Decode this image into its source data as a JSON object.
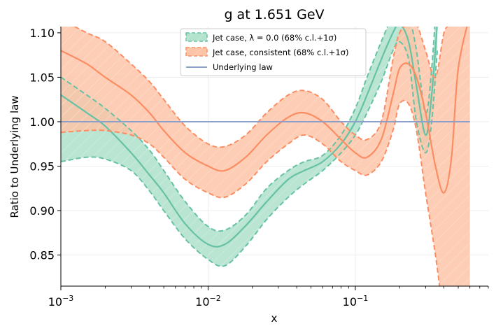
{
  "chart_data": {
    "type": "line",
    "title": "g at 1.651 GeV",
    "xlabel": "x",
    "ylabel": "Ratio to Underlying law",
    "xscale": "log",
    "xlim": [
      0.001,
      0.8
    ],
    "ylim": [
      0.815,
      1.107
    ],
    "yticks": [
      0.85,
      0.9,
      0.95,
      1.0,
      1.05,
      1.1
    ],
    "ytick_labels": [
      "0.85",
      "0.90",
      "0.95",
      "1.00",
      "1.05",
      "1.10"
    ],
    "xticks": [
      0.001,
      0.01,
      0.1
    ],
    "xtick_labels": [
      {
        "base": "10",
        "exp": "−3"
      },
      {
        "base": "10",
        "exp": "−2"
      },
      {
        "base": "10",
        "exp": "−1"
      }
    ],
    "legend_position": "top-center",
    "legend": [
      "Jet case, λ = 0.0 (68% c.l.+1σ)",
      "Jet case, consistent (68% c.l.+1σ)",
      "Underlying law"
    ],
    "colors": {
      "green": "#66c2a5",
      "green_fill": "#b3e2cd",
      "orange": "#fc8d62",
      "orange_fill": "#fdc4a8",
      "underlying": "#8da0cb"
    },
    "series": [
      {
        "name": "Jet case, λ = 0.0 (68% c.l.+1σ)",
        "x": [
          0.001,
          0.0015,
          0.002,
          0.003,
          0.004,
          0.005,
          0.007,
          0.01,
          0.013,
          0.018,
          0.025,
          0.035,
          0.045,
          0.06,
          0.08,
          0.1,
          0.12,
          0.15,
          0.18,
          0.2,
          0.23,
          0.26,
          0.3,
          0.33,
          0.36
        ],
        "central": [
          1.03,
          1.01,
          0.995,
          0.965,
          0.94,
          0.92,
          0.885,
          0.862,
          0.862,
          0.883,
          0.91,
          0.935,
          0.945,
          0.955,
          0.975,
          1.0,
          1.03,
          1.07,
          1.1,
          1.11,
          1.09,
          1.04,
          0.985,
          1.03,
          1.11
        ],
        "upper": [
          1.05,
          1.03,
          1.015,
          0.99,
          0.968,
          0.945,
          0.91,
          0.882,
          0.878,
          0.895,
          0.925,
          0.945,
          0.955,
          0.962,
          0.985,
          1.015,
          1.05,
          1.09,
          1.12,
          1.13,
          1.12,
          1.08,
          1.01,
          1.06,
          1.15
        ],
        "lower": [
          0.955,
          0.96,
          0.958,
          0.945,
          0.922,
          0.9,
          0.868,
          0.845,
          0.838,
          0.86,
          0.89,
          0.915,
          0.93,
          0.945,
          0.965,
          0.985,
          1.01,
          1.045,
          1.08,
          1.09,
          1.07,
          1.0,
          0.965,
          1.0,
          1.08
        ]
      },
      {
        "name": "Jet case, consistent (68% c.l.+1σ)",
        "x": [
          0.001,
          0.0015,
          0.002,
          0.003,
          0.004,
          0.005,
          0.007,
          0.01,
          0.013,
          0.018,
          0.025,
          0.035,
          0.045,
          0.06,
          0.08,
          0.1,
          0.12,
          0.15,
          0.18,
          0.2,
          0.23,
          0.26,
          0.3,
          0.35,
          0.4,
          0.45,
          0.5,
          0.6
        ],
        "central": [
          1.08,
          1.065,
          1.05,
          1.03,
          1.01,
          0.99,
          0.965,
          0.95,
          0.945,
          0.96,
          0.985,
          1.005,
          1.01,
          1.0,
          0.98,
          0.965,
          0.96,
          0.98,
          1.03,
          1.06,
          1.065,
          1.05,
          1.01,
          0.95,
          0.92,
          0.96,
          1.06,
          1.12
        ],
        "upper": [
          1.115,
          1.1,
          1.09,
          1.065,
          1.045,
          1.025,
          0.995,
          0.975,
          0.972,
          0.985,
          1.01,
          1.03,
          1.035,
          1.025,
          1.0,
          0.985,
          0.98,
          1.0,
          1.07,
          1.1,
          1.11,
          1.11,
          1.08,
          1.05,
          1.1,
          1.11,
          1.12,
          1.12
        ],
        "lower": [
          0.988,
          0.99,
          0.99,
          0.985,
          0.975,
          0.96,
          0.935,
          0.92,
          0.915,
          0.93,
          0.955,
          0.975,
          0.985,
          0.975,
          0.955,
          0.945,
          0.94,
          0.955,
          0.99,
          1.02,
          1.02,
          0.99,
          0.92,
          0.85,
          0.78,
          0.75,
          0.75,
          0.77
        ]
      },
      {
        "name": "Underlying law",
        "x": [
          0.001,
          0.6
        ],
        "values": [
          1.0,
          1.0
        ]
      }
    ]
  }
}
